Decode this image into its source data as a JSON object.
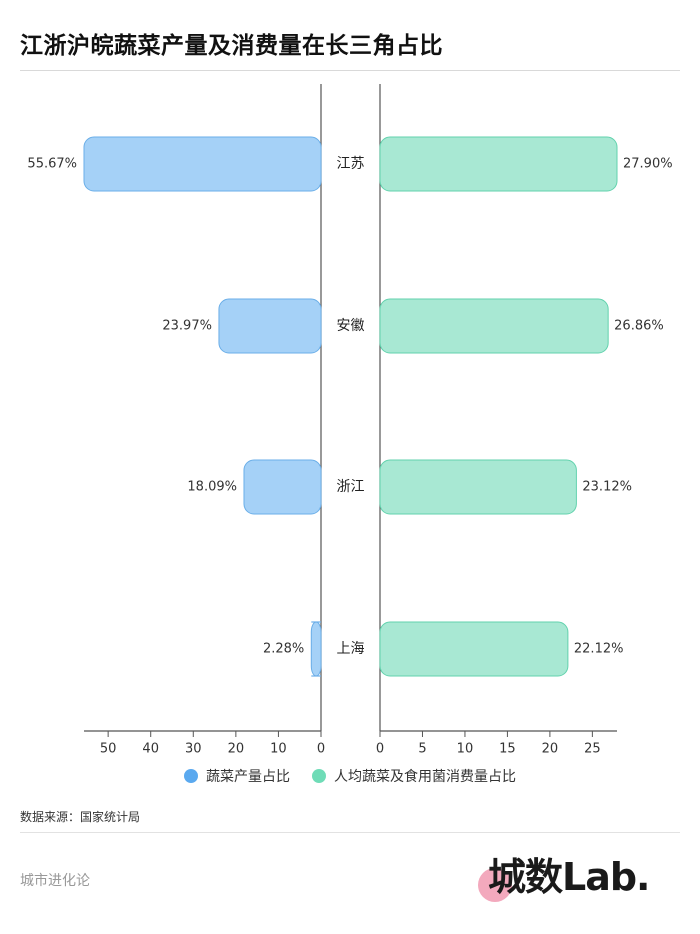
{
  "title": "江浙沪皖蔬菜产量及消费量在长三角占比",
  "source": "数据来源：国家统计局",
  "brand_left": "城市进化论",
  "logo_text": "城数Lab.",
  "colors": {
    "left_fill": "#a5d1f7",
    "left_stroke": "#6aaee8",
    "right_fill": "#a8e8d3",
    "right_stroke": "#62d2ad",
    "legend_left": "#5aa9ef",
    "legend_right": "#6fdcb7",
    "logo_circle": "#f3a9bd"
  },
  "chart_data": {
    "type": "bar",
    "categories": [
      "江苏",
      "安徽",
      "浙江",
      "上海"
    ],
    "series": [
      {
        "name": "蔬菜产量占比",
        "values": [
          55.67,
          23.97,
          18.09,
          2.28
        ],
        "labels": [
          "55.67%",
          "23.97%",
          "18.09%",
          "2.28%"
        ],
        "axis_ticks": [
          50,
          40,
          30,
          20,
          10,
          0
        ],
        "xlim": [
          55.67,
          0
        ]
      },
      {
        "name": "人均蔬菜及食用菌消费量占比",
        "values": [
          27.9,
          26.86,
          23.12,
          22.12
        ],
        "labels": [
          "27.90%",
          "26.86%",
          "23.12%",
          "22.12%"
        ],
        "axis_ticks": [
          0,
          5,
          10,
          15,
          20,
          25
        ],
        "xlim": [
          0,
          27.9
        ]
      }
    ],
    "legend_position": "bottom",
    "grid": false
  }
}
